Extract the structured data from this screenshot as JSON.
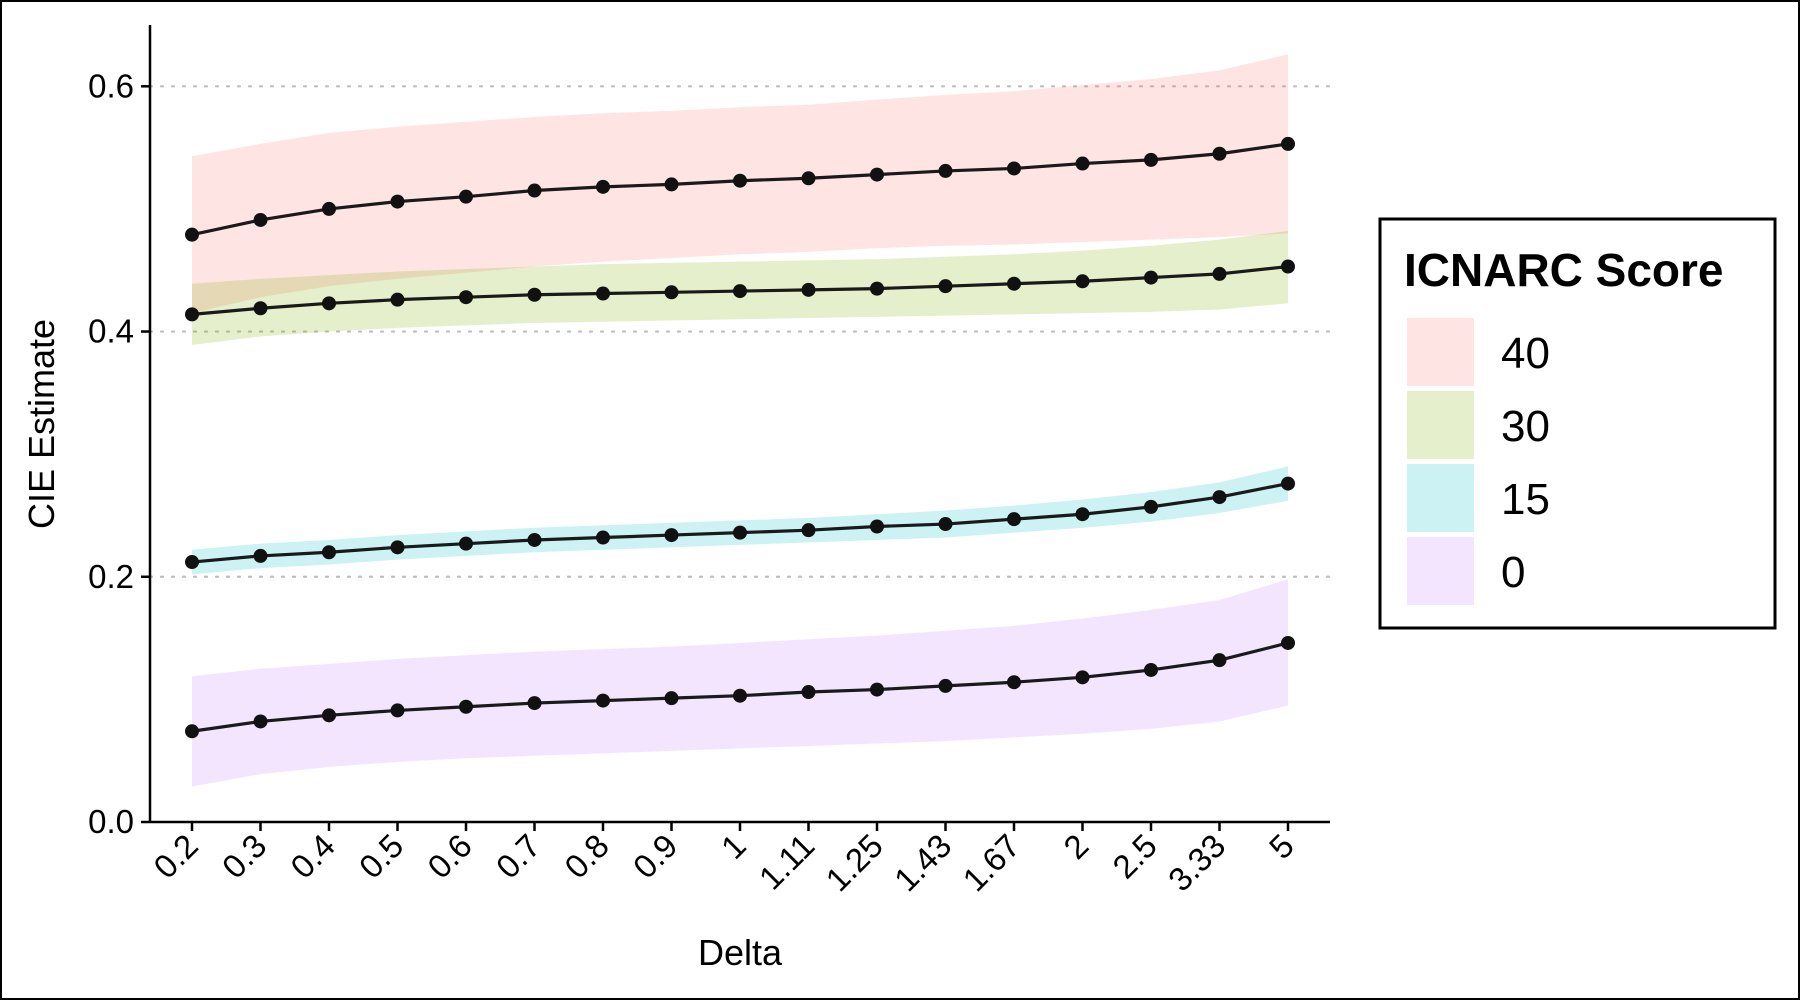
{
  "chart_data": {
    "type": "line",
    "xlabel": "Delta",
    "ylabel": "CIE Estimate",
    "categories": [
      "0.2",
      "0.3",
      "0.4",
      "0.5",
      "0.6",
      "0.7",
      "0.8",
      "0.9",
      "1",
      "1.11",
      "1.25",
      "1.43",
      "1.67",
      "2",
      "2.5",
      "3.33",
      "5"
    ],
    "ylim": [
      0,
      0.65
    ],
    "yticks": [
      0.0,
      0.2,
      0.4,
      0.6
    ],
    "ytick_labels": [
      "0.0",
      "0.2",
      "0.4",
      "0.6"
    ],
    "grid": "horizontal dotted at major y ticks",
    "legend": {
      "title": "ICNARC Score",
      "position": "right"
    },
    "series": [
      {
        "name": "40",
        "color": "#f8766d",
        "values": [
          0.479,
          0.491,
          0.5,
          0.506,
          0.51,
          0.515,
          0.518,
          0.52,
          0.523,
          0.525,
          0.528,
          0.531,
          0.533,
          0.537,
          0.54,
          0.545,
          0.553
        ],
        "lower": [
          0.415,
          0.428,
          0.437,
          0.443,
          0.448,
          0.453,
          0.457,
          0.46,
          0.463,
          0.465,
          0.468,
          0.47,
          0.471,
          0.473,
          0.475,
          0.477,
          0.48
        ],
        "upper": [
          0.543,
          0.553,
          0.562,
          0.567,
          0.571,
          0.575,
          0.578,
          0.58,
          0.583,
          0.585,
          0.589,
          0.593,
          0.596,
          0.601,
          0.606,
          0.613,
          0.626
        ]
      },
      {
        "name": "30",
        "color": "#7cae00",
        "values": [
          0.414,
          0.419,
          0.423,
          0.426,
          0.428,
          0.43,
          0.431,
          0.432,
          0.433,
          0.434,
          0.435,
          0.437,
          0.439,
          0.441,
          0.444,
          0.447,
          0.453
        ],
        "lower": [
          0.389,
          0.396,
          0.4,
          0.403,
          0.405,
          0.407,
          0.408,
          0.409,
          0.41,
          0.411,
          0.412,
          0.413,
          0.414,
          0.415,
          0.416,
          0.418,
          0.423
        ],
        "upper": [
          0.439,
          0.443,
          0.446,
          0.449,
          0.451,
          0.453,
          0.455,
          0.456,
          0.457,
          0.458,
          0.459,
          0.461,
          0.463,
          0.466,
          0.47,
          0.475,
          0.482
        ]
      },
      {
        "name": "15",
        "color": "#00bfc4",
        "values": [
          0.212,
          0.217,
          0.22,
          0.224,
          0.227,
          0.23,
          0.232,
          0.234,
          0.236,
          0.238,
          0.241,
          0.243,
          0.247,
          0.251,
          0.257,
          0.265,
          0.276
        ],
        "lower": [
          0.202,
          0.207,
          0.21,
          0.214,
          0.217,
          0.22,
          0.222,
          0.224,
          0.226,
          0.228,
          0.23,
          0.232,
          0.236,
          0.24,
          0.245,
          0.252,
          0.262
        ],
        "upper": [
          0.222,
          0.227,
          0.23,
          0.234,
          0.237,
          0.24,
          0.242,
          0.244,
          0.246,
          0.248,
          0.251,
          0.254,
          0.258,
          0.263,
          0.269,
          0.277,
          0.29
        ]
      },
      {
        "name": "0",
        "color": "#c77cff",
        "values": [
          0.074,
          0.082,
          0.087,
          0.091,
          0.094,
          0.097,
          0.099,
          0.101,
          0.103,
          0.106,
          0.108,
          0.111,
          0.114,
          0.118,
          0.124,
          0.132,
          0.146
        ],
        "lower": [
          0.029,
          0.039,
          0.045,
          0.049,
          0.052,
          0.054,
          0.056,
          0.058,
          0.06,
          0.062,
          0.064,
          0.066,
          0.069,
          0.072,
          0.076,
          0.082,
          0.095
        ],
        "upper": [
          0.119,
          0.125,
          0.129,
          0.133,
          0.136,
          0.139,
          0.141,
          0.143,
          0.146,
          0.149,
          0.152,
          0.156,
          0.16,
          0.166,
          0.173,
          0.181,
          0.198
        ]
      }
    ]
  }
}
